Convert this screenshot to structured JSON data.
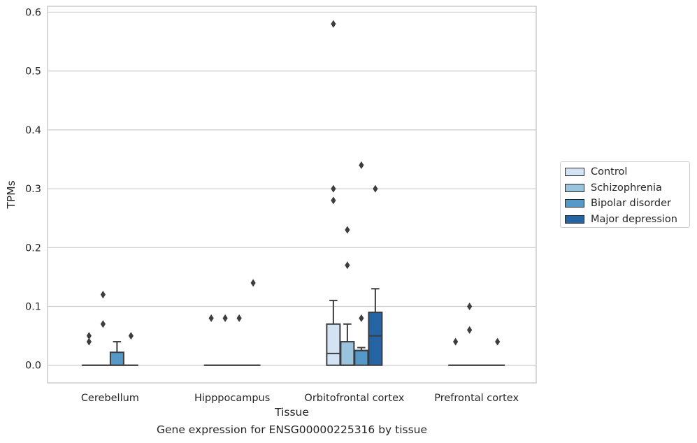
{
  "chart_data": {
    "type": "box",
    "title": "Gene expression for ENSG00000225316 by tissue",
    "xlabel": "Tissue",
    "ylabel": "TPMs",
    "ylim": [
      -0.03,
      0.61
    ],
    "yticks": [
      "0.0",
      "0.1",
      "0.2",
      "0.3",
      "0.4",
      "0.5",
      "0.6"
    ],
    "grid": "horizontal",
    "legend_position": "right",
    "categories": [
      "Cerebellum",
      "Hipppocampus",
      "Orbitofrontal cortex",
      "Prefrontal cortex"
    ],
    "series": [
      {
        "name": "Control",
        "color": "#d3e3f3",
        "boxes": [
          {
            "q1": 0,
            "median": 0,
            "q3": 0,
            "whisker_low": 0,
            "whisker_high": 0,
            "outliers": [
              0.05,
              0.04
            ]
          },
          {
            "q1": 0,
            "median": 0,
            "q3": 0,
            "whisker_low": 0,
            "whisker_high": 0,
            "outliers": [
              0.08
            ]
          },
          {
            "q1": 0,
            "median": 0.02,
            "q3": 0.07,
            "whisker_low": 0,
            "whisker_high": 0.11,
            "outliers": [
              0.58,
              0.3,
              0.28
            ]
          },
          {
            "q1": 0,
            "median": 0,
            "q3": 0,
            "whisker_low": 0,
            "whisker_high": 0,
            "outliers": [
              0.04
            ]
          }
        ]
      },
      {
        "name": "Schizophrenia",
        "color": "#9ac3de",
        "boxes": [
          {
            "q1": 0,
            "median": 0,
            "q3": 0,
            "whisker_low": 0,
            "whisker_high": 0,
            "outliers": [
              0.12,
              0.07
            ]
          },
          {
            "q1": 0,
            "median": 0,
            "q3": 0,
            "whisker_low": 0,
            "whisker_high": 0,
            "outliers": [
              0.08
            ]
          },
          {
            "q1": 0,
            "median": 0,
            "q3": 0.04,
            "whisker_low": 0,
            "whisker_high": 0.07,
            "outliers": [
              0.23,
              0.17
            ]
          },
          {
            "q1": 0,
            "median": 0,
            "q3": 0,
            "whisker_low": 0,
            "whisker_high": 0,
            "outliers": [
              0.1,
              0.06
            ]
          }
        ]
      },
      {
        "name": "Bipolar disorder",
        "color": "#5599c8",
        "boxes": [
          {
            "q1": 0,
            "median": 0,
            "q3": 0.022,
            "whisker_low": 0,
            "whisker_high": 0.04,
            "outliers": []
          },
          {
            "q1": 0,
            "median": 0,
            "q3": 0,
            "whisker_low": 0,
            "whisker_high": 0,
            "outliers": [
              0.08
            ]
          },
          {
            "q1": 0,
            "median": 0.025,
            "q3": 0.025,
            "whisker_low": 0,
            "whisker_high": 0.03,
            "outliers": [
              0.34,
              0.08
            ]
          },
          {
            "q1": 0,
            "median": 0,
            "q3": 0,
            "whisker_low": 0,
            "whisker_high": 0,
            "outliers": []
          }
        ]
      },
      {
        "name": "Major depression",
        "color": "#2565a3",
        "boxes": [
          {
            "q1": 0,
            "median": 0,
            "q3": 0,
            "whisker_low": 0,
            "whisker_high": 0,
            "outliers": [
              0.05
            ]
          },
          {
            "q1": 0,
            "median": 0,
            "q3": 0,
            "whisker_low": 0,
            "whisker_high": 0,
            "outliers": [
              0.14
            ]
          },
          {
            "q1": 0,
            "median": 0.05,
            "q3": 0.09,
            "whisker_low": 0,
            "whisker_high": 0.13,
            "outliers": [
              0.3
            ]
          },
          {
            "q1": 0,
            "median": 0,
            "q3": 0,
            "whisker_low": 0,
            "whisker_high": 0,
            "outliers": [
              0.04
            ]
          }
        ]
      }
    ]
  }
}
